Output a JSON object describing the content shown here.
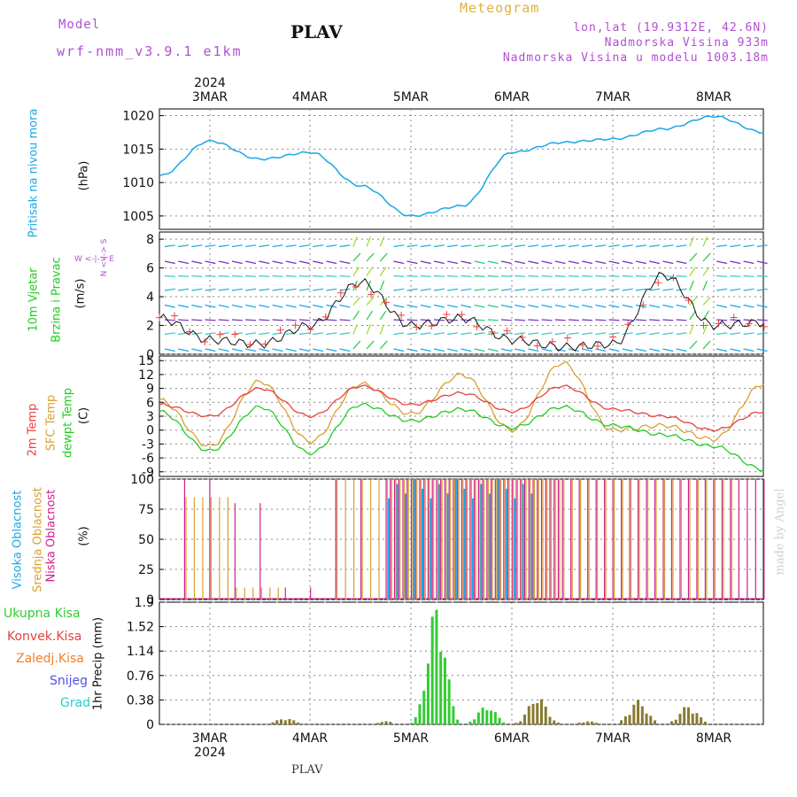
{
  "header": {
    "model_label": "Model",
    "model_name": "wrf-nmm_v3.9.1 e1km",
    "title": "PLAV",
    "subtitle": "Meteogram",
    "location": "lon,lat (19.9312E, 42.6N)",
    "elevation": "Nadmorska Visina 933m",
    "model_elevation": "Nadmorska Visina u modelu 1003.18m",
    "footer_title": "PLAV",
    "watermark": "made by Angel"
  },
  "colors": {
    "pressure": "#1aa7e6",
    "temp2m": "#e8403c",
    "sfc": "#d9a030",
    "dew": "#22cc22",
    "visoka": "#1aa7e6",
    "srednja": "#d9a030",
    "niska": "#d0208c",
    "rain": "#33cc33",
    "conv": "#e84040",
    "frozen": "#f08030",
    "snow": "#5050e0",
    "grad": "#30c8c8",
    "wind_speed": "#111111",
    "gust": "#e84040",
    "purple": "#b050d0"
  },
  "axes": {
    "year": "2024",
    "days": [
      "3MAR",
      "4MAR",
      "5MAR",
      "6MAR",
      "7MAR",
      "8MAR"
    ]
  },
  "panels": {
    "pressure": {
      "label": "Pritisak na nivou mora",
      "unit": "(hPa)",
      "ticks": [
        "1005",
        "1010",
        "1015",
        "1020"
      ]
    },
    "wind": {
      "label1": "10m Vjetar",
      "label2": "Brzina i Pravac",
      "unit": "(m/s)",
      "compass": "W <-|-> E",
      "compass_ns": "N <-|-> S",
      "ticks": [
        "0",
        "2",
        "4",
        "6",
        "8"
      ]
    },
    "temp": {
      "label1": "2m Temp",
      "label2": "SFC Temp",
      "label3": "dewpt Temp",
      "unit": "(C)",
      "ticks": [
        "-9",
        "-6",
        "-3",
        "0",
        "3",
        "6",
        "9",
        "12",
        "15"
      ]
    },
    "cloud": {
      "label1": "Visoka Oblacnost",
      "label2": "Srednja Oblacnost",
      "label3": "Niska Oblacnost",
      "unit": "(%)",
      "ticks": [
        "0",
        "25",
        "50",
        "75",
        "100"
      ]
    },
    "precip": {
      "unit": "1hr Precip (mm)",
      "ticks": [
        "0",
        "0.38",
        "0.76",
        "1.14",
        "1.52",
        "1.9"
      ],
      "legend": [
        "Ukupna Kisa",
        "Konvek.Kisa",
        "Zaledj.Kisa",
        "Snijeg",
        "Grad"
      ]
    }
  },
  "chart_data": {
    "type": "line",
    "x": [
      "2024-03-02 12Z",
      "2024-03-03 00Z",
      "2024-03-03 12Z",
      "2024-03-04 00Z",
      "2024-03-04 12Z",
      "2024-03-05 00Z",
      "2024-03-05 12Z",
      "2024-03-06 00Z",
      "2024-03-06 12Z",
      "2024-03-07 00Z",
      "2024-03-07 12Z",
      "2024-03-08 00Z",
      "2024-03-08 12Z"
    ],
    "pressure_hPa": [
      1011.0,
      1016.2,
      1013.5,
      1014.5,
      1009.5,
      1005.0,
      1006.5,
      1014.5,
      1016.0,
      1016.5,
      1018.0,
      1019.9,
      1017.5
    ],
    "wind_speed_ms": [
      2.5,
      1.0,
      0.7,
      2.0,
      5.0,
      2.0,
      2.5,
      1.0,
      0.5,
      0.7,
      5.5,
      2.0,
      2.2
    ],
    "temp_2m_C": [
      5.5,
      3.0,
      9.0,
      3.0,
      9.5,
      5.5,
      8.0,
      4.0,
      9.5,
      4.5,
      3.0,
      0.0,
      4.0
    ],
    "temp_sfc_C": [
      6.5,
      -3.5,
      10.5,
      -2.5,
      10.0,
      3.5,
      12.0,
      0.0,
      14.5,
      0.0,
      1.0,
      -2.0,
      10.0
    ],
    "dewpt_C": [
      4.0,
      -4.5,
      5.0,
      -5.0,
      5.5,
      2.0,
      4.5,
      0.5,
      5.0,
      1.0,
      -1.0,
      -3.5,
      -8.5
    ],
    "cloud_high_pct": [
      0,
      0,
      0,
      0,
      0,
      100,
      100,
      100,
      0,
      0,
      0,
      0,
      0
    ],
    "cloud_mid_pct": [
      0,
      85,
      10,
      0,
      100,
      100,
      100,
      100,
      100,
      100,
      100,
      100,
      0
    ],
    "cloud_low_pct": [
      0,
      100,
      80,
      10,
      100,
      100,
      100,
      100,
      100,
      100,
      100,
      100,
      100
    ],
    "precip_total_mm": [
      0,
      0,
      0.1,
      0,
      0.05,
      1.9,
      0.3,
      0.45,
      0.05,
      0.38,
      0.3,
      0,
      0
    ],
    "xlim": [
      "2024-03-02 12Z",
      "2024-03-08 12Z"
    ],
    "ylim_pressure": [
      1003,
      1021
    ],
    "ylim_wind": [
      0,
      8.5
    ],
    "ylim_temp": [
      -10,
      16
    ],
    "ylim_cloud": [
      0,
      100
    ],
    "ylim_precip": [
      0,
      1.9
    ],
    "grid": true
  }
}
